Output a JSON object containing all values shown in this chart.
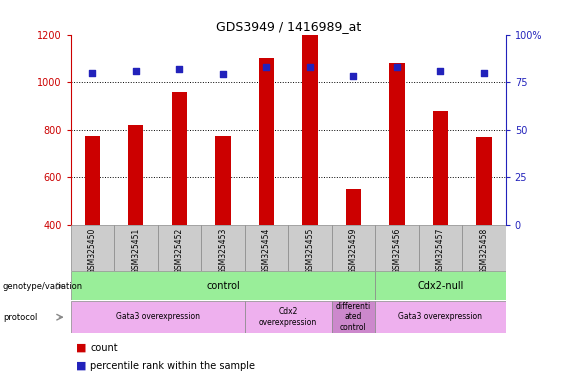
{
  "title": "GDS3949 / 1416989_at",
  "samples": [
    "GSM325450",
    "GSM325451",
    "GSM325452",
    "GSM325453",
    "GSM325454",
    "GSM325455",
    "GSM325459",
    "GSM325456",
    "GSM325457",
    "GSM325458"
  ],
  "counts": [
    775,
    820,
    960,
    775,
    1100,
    1200,
    550,
    1080,
    880,
    770
  ],
  "percentile_ranks": [
    80,
    81,
    82,
    79,
    83,
    83,
    78,
    83,
    81,
    80
  ],
  "ylim_left": [
    400,
    1200
  ],
  "ylim_right": [
    0,
    100
  ],
  "yticks_left": [
    400,
    600,
    800,
    1000,
    1200
  ],
  "yticks_right": [
    0,
    25,
    50,
    75,
    100
  ],
  "bar_color": "#CC0000",
  "dot_color": "#2222BB",
  "bar_width": 0.35,
  "left_axis_color": "#CC0000",
  "right_axis_color": "#2222BB",
  "genotype_groups": [
    {
      "label": "control",
      "start": 0,
      "end": 7,
      "color": "#99EE99"
    },
    {
      "label": "Cdx2-null",
      "start": 7,
      "end": 10,
      "color": "#99EE99"
    }
  ],
  "protocol_groups": [
    {
      "label": "Gata3 overexpression",
      "start": 0,
      "end": 4,
      "color": "#EEB0EE"
    },
    {
      "label": "Cdx2\noverexpression",
      "start": 4,
      "end": 6,
      "color": "#EEB0EE"
    },
    {
      "label": "differenti\nated\ncontrol",
      "start": 6,
      "end": 7,
      "color": "#CC88CC"
    },
    {
      "label": "Gata3 overexpression",
      "start": 7,
      "end": 10,
      "color": "#EEB0EE"
    }
  ]
}
